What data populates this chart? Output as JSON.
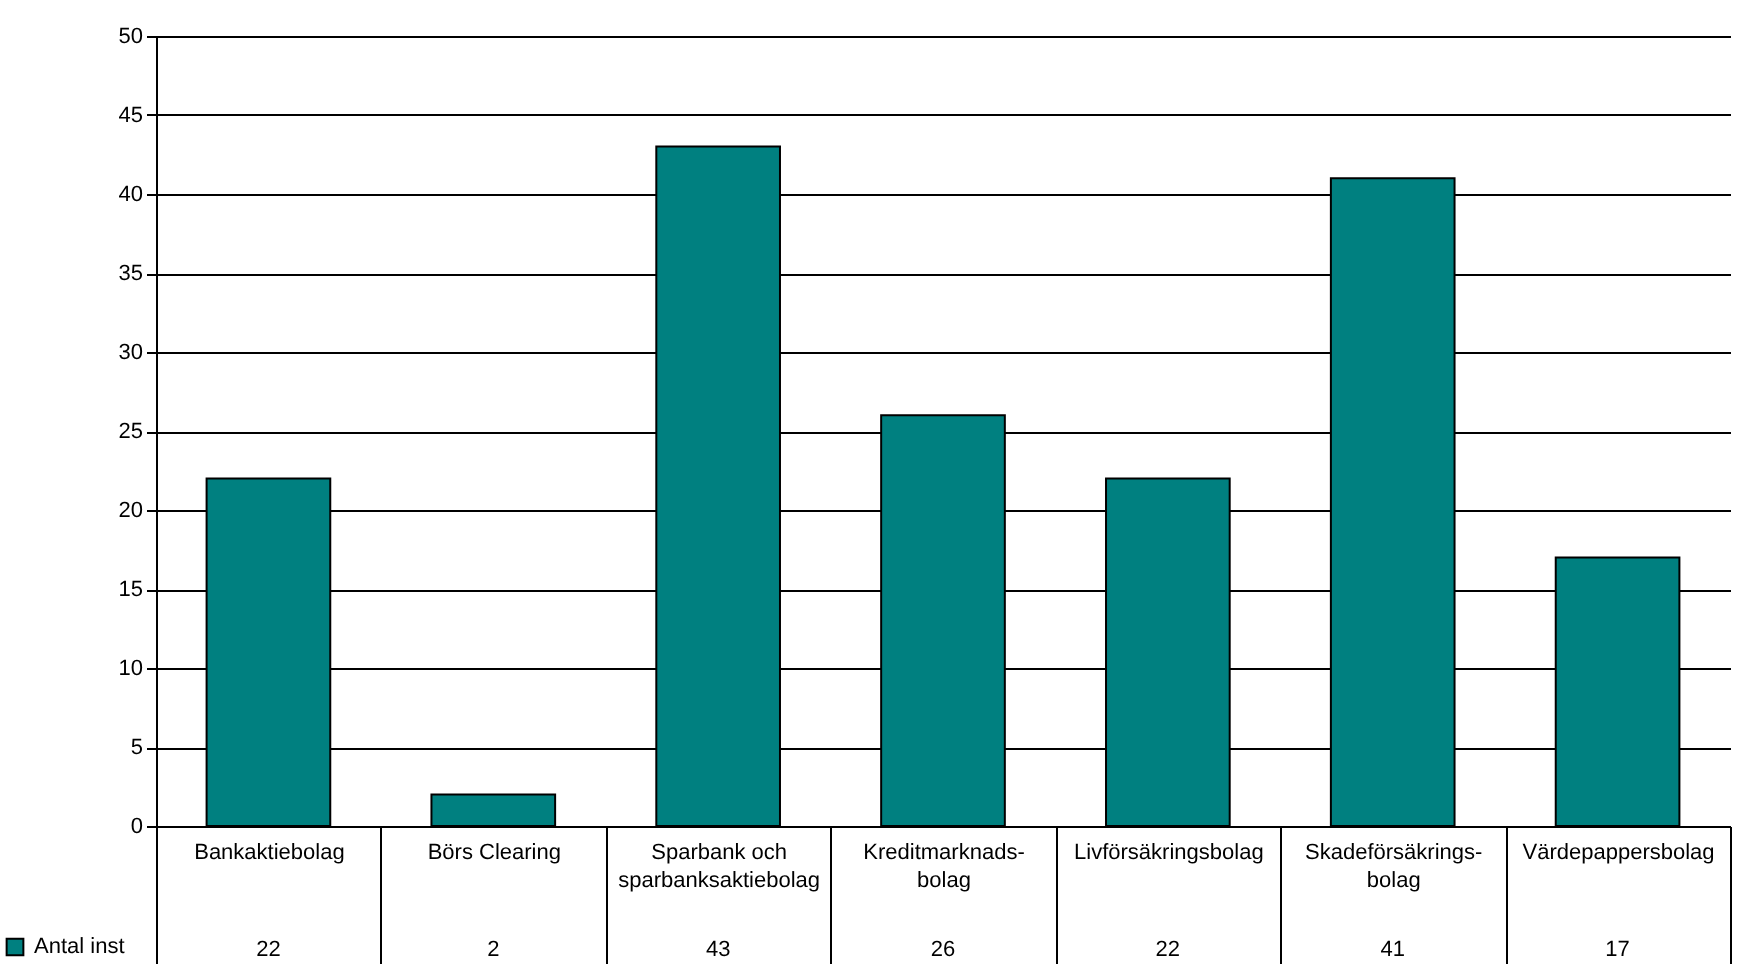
{
  "chart_data": {
    "type": "bar",
    "categories": [
      "Bankaktiebolag",
      "Börs Clearing",
      "Sparbank och sparbanksaktiebolag",
      "Kreditmarknads-bolag",
      "Livförsäkringsbolag",
      "Skadeförsäkrings-bolag",
      "Värdepappersbolag"
    ],
    "series": [
      {
        "name": "Antal inst",
        "color": "#008080",
        "values": [
          22,
          2,
          43,
          26,
          22,
          41,
          17
        ]
      }
    ],
    "ylim": [
      0,
      50
    ],
    "yticks": [
      0,
      5,
      10,
      15,
      20,
      25,
      30,
      35,
      40,
      45,
      50
    ],
    "grid": "y",
    "data_labels": true,
    "legend": "bottom left"
  }
}
